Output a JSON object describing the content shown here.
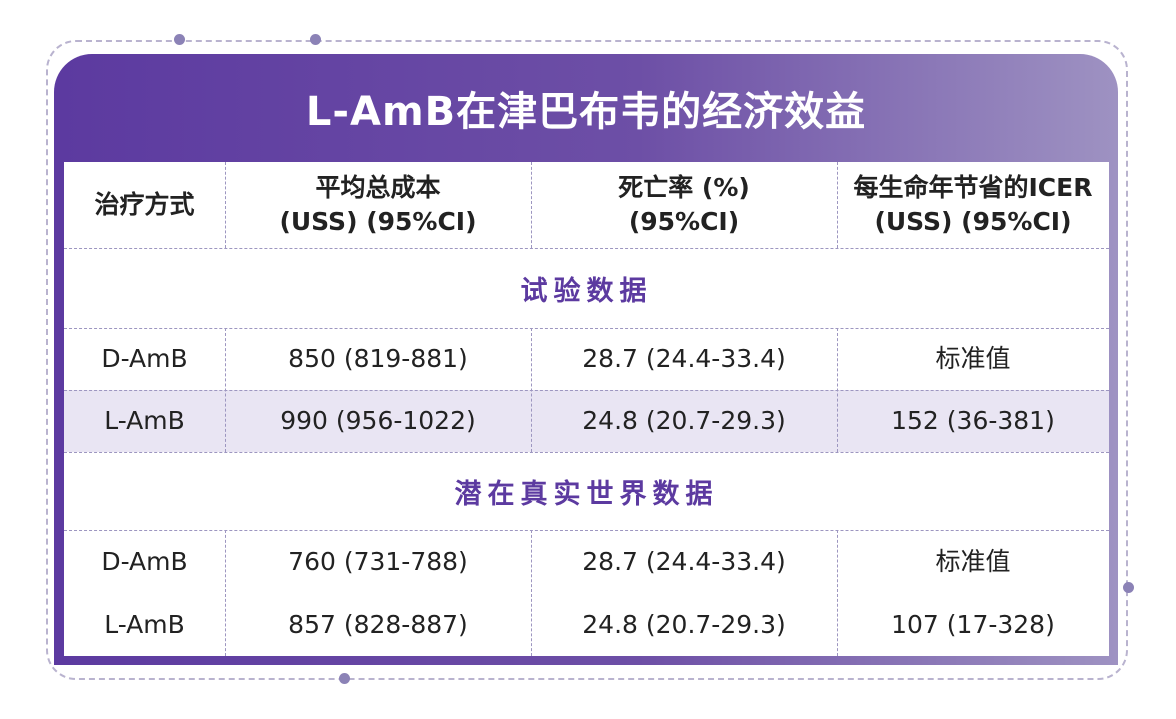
{
  "title": "L-AmB在津巴布韦的经济效益",
  "headers": [
    "治疗方式",
    "平均总成本\n(USS) (95%CI)",
    "死亡率 (%)\n(95%CI)",
    "每生命年节省的ICER\n(USS) (95%CI)"
  ],
  "sections": [
    {
      "label": "试验数据",
      "rows": [
        [
          "D-AmB",
          "850 (819-881)",
          "28.7 (24.4-33.4)",
          "标准值"
        ],
        [
          "L-AmB",
          "990 (956-1022)",
          "24.8 (20.7-29.3)",
          "152 (36-381)"
        ]
      ]
    },
    {
      "label": "潜在真实世界数据",
      "rows": [
        [
          "D-AmB",
          "760 (731-788)",
          "28.7 (24.4-33.4)",
          "标准值"
        ],
        [
          "L-AmB",
          "857 (828-887)",
          "24.8 (20.7-29.3)",
          "107 (17-328)"
        ]
      ]
    }
  ],
  "colors": {
    "accent": "#5c3aa0",
    "row_highlight": "#e9e5f3",
    "dash": "#9d96c0"
  }
}
